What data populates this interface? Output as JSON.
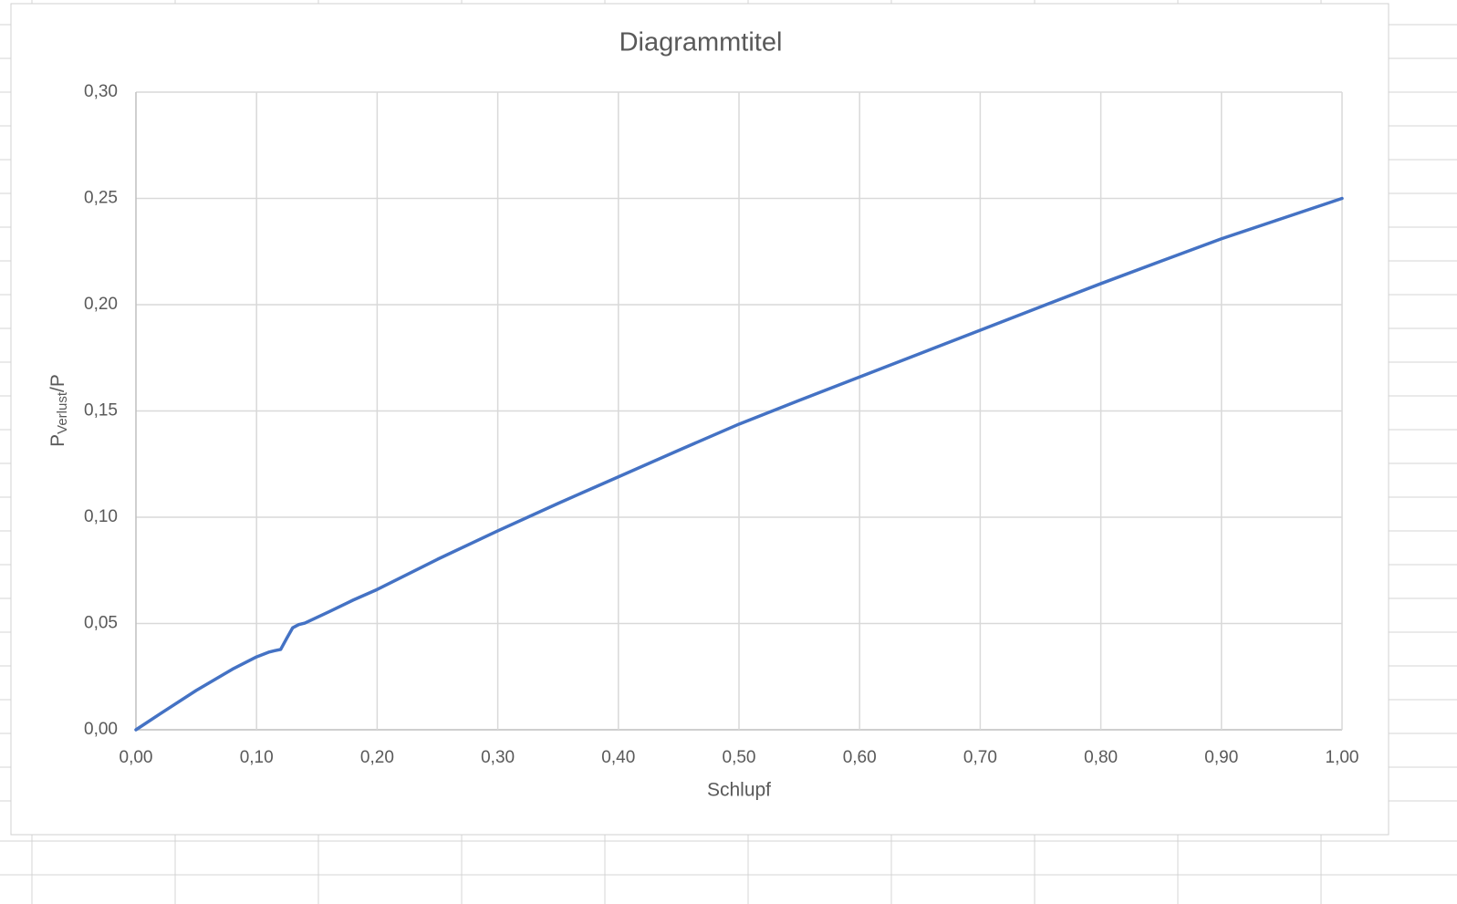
{
  "chart_data": {
    "type": "line",
    "title": "Diagrammtitel",
    "xlabel": "Schlupf",
    "ylabel": [
      "P",
      "Verlust",
      "/P"
    ],
    "x": [
      0,
      0.02,
      0.05,
      0.08,
      0.1,
      0.11,
      0.115,
      0.12,
      0.125,
      0.13,
      0.135,
      0.14,
      0.16,
      0.18,
      0.2,
      0.25,
      0.3,
      0.35,
      0.4,
      0.45,
      0.5,
      0.55,
      0.6,
      0.65,
      0.7,
      0.75,
      0.8,
      0.85,
      0.9,
      0.95,
      1.0
    ],
    "series": [
      {
        "name": "Pverlust/P",
        "color": "#4472c4",
        "values": [
          0,
          0.0075,
          0.0185,
          0.0285,
          0.0343,
          0.0365,
          0.0372,
          0.0378,
          0.043,
          0.048,
          0.0495,
          0.0502,
          0.0555,
          0.061,
          0.066,
          0.0802,
          0.0936,
          0.1065,
          0.119,
          0.1315,
          0.1438,
          0.155,
          0.166,
          0.177,
          0.188,
          0.199,
          0.2099,
          0.2205,
          0.231,
          0.2405,
          0.25
        ]
      }
    ],
    "xlim": [
      0,
      1
    ],
    "ylim": [
      0,
      0.3
    ],
    "xticks": [
      {
        "value": 0,
        "label": "0,00"
      },
      {
        "value": 0.1,
        "label": "0,10"
      },
      {
        "value": 0.2,
        "label": "0,20"
      },
      {
        "value": 0.3,
        "label": "0,30"
      },
      {
        "value": 0.4,
        "label": "0,40"
      },
      {
        "value": 0.5,
        "label": "0,50"
      },
      {
        "value": 0.6,
        "label": "0,60"
      },
      {
        "value": 0.7,
        "label": "0,70"
      },
      {
        "value": 0.8,
        "label": "0,80"
      },
      {
        "value": 0.9,
        "label": "0,90"
      },
      {
        "value": 1,
        "label": "1,00"
      }
    ],
    "yticks": [
      {
        "value": 0,
        "label": "0,00"
      },
      {
        "value": 0.05,
        "label": "0,05"
      },
      {
        "value": 0.1,
        "label": "0,10"
      },
      {
        "value": 0.15,
        "label": "0,15"
      },
      {
        "value": 0.2,
        "label": "0,20"
      },
      {
        "value": 0.25,
        "label": "0,25"
      },
      {
        "value": 0.3,
        "label": "0,30"
      }
    ],
    "grid": true
  }
}
